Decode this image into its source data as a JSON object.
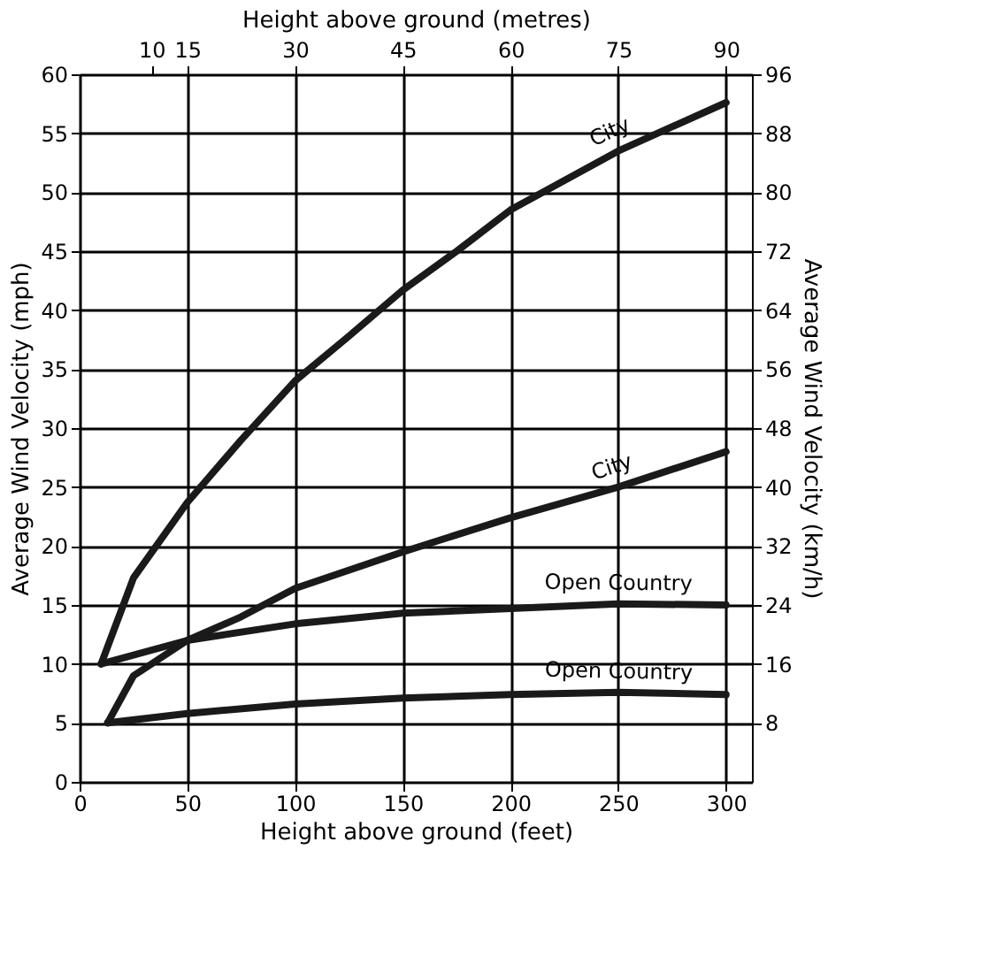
{
  "chart_data": {
    "type": "line",
    "xlabel": "Height above ground (feet)",
    "ylabel": "Average Wind Velocity (mph)",
    "x2label": "Height above ground (metres)",
    "y2label": "Average Wind Velocity (km/h)",
    "xlim": [
      0,
      312
    ],
    "xticks": [
      0,
      50,
      100,
      150,
      200,
      250,
      300
    ],
    "ylim": [
      0,
      60
    ],
    "yticks": [
      0,
      5,
      10,
      15,
      20,
      25,
      30,
      35,
      40,
      45,
      50,
      55,
      60
    ],
    "x2lim": [
      0,
      93.6
    ],
    "x2ticks": [
      10,
      15,
      30,
      45,
      60,
      75,
      90
    ],
    "y2lim": [
      0,
      96
    ],
    "y2ticks": [
      8,
      16,
      24,
      32,
      40,
      48,
      56,
      64,
      72,
      80,
      88,
      96
    ],
    "grid": true,
    "marker": "none",
    "line_style": "solid",
    "series": [
      {
        "name": "City",
        "color": "#1a1a1a",
        "x": [
          10,
          25,
          50,
          75,
          100,
          125,
          150,
          175,
          200,
          250,
          300
        ],
        "values": [
          10,
          17.3,
          23.7,
          29,
          34,
          37.8,
          41.7,
          45,
          48.5,
          53.5,
          57.6
        ]
      },
      {
        "name": "City",
        "color": "#1a1a1a",
        "x": [
          13,
          25,
          50,
          75,
          100,
          150,
          200,
          250,
          300
        ],
        "values": [
          5,
          9,
          12,
          14,
          16.4,
          19.5,
          22.4,
          25,
          28
        ]
      },
      {
        "name": "Open Country",
        "color": "#1a1a1a",
        "x": [
          10,
          50,
          100,
          150,
          200,
          250,
          300
        ],
        "values": [
          10,
          12,
          13.4,
          14.3,
          14.7,
          15.1,
          15
        ]
      },
      {
        "name": "Open Country",
        "color": "#1a1a1a",
        "x": [
          13,
          50,
          100,
          150,
          200,
          250,
          300
        ],
        "values": [
          5,
          5.8,
          6.6,
          7.1,
          7.4,
          7.6,
          7.4
        ]
      }
    ]
  }
}
